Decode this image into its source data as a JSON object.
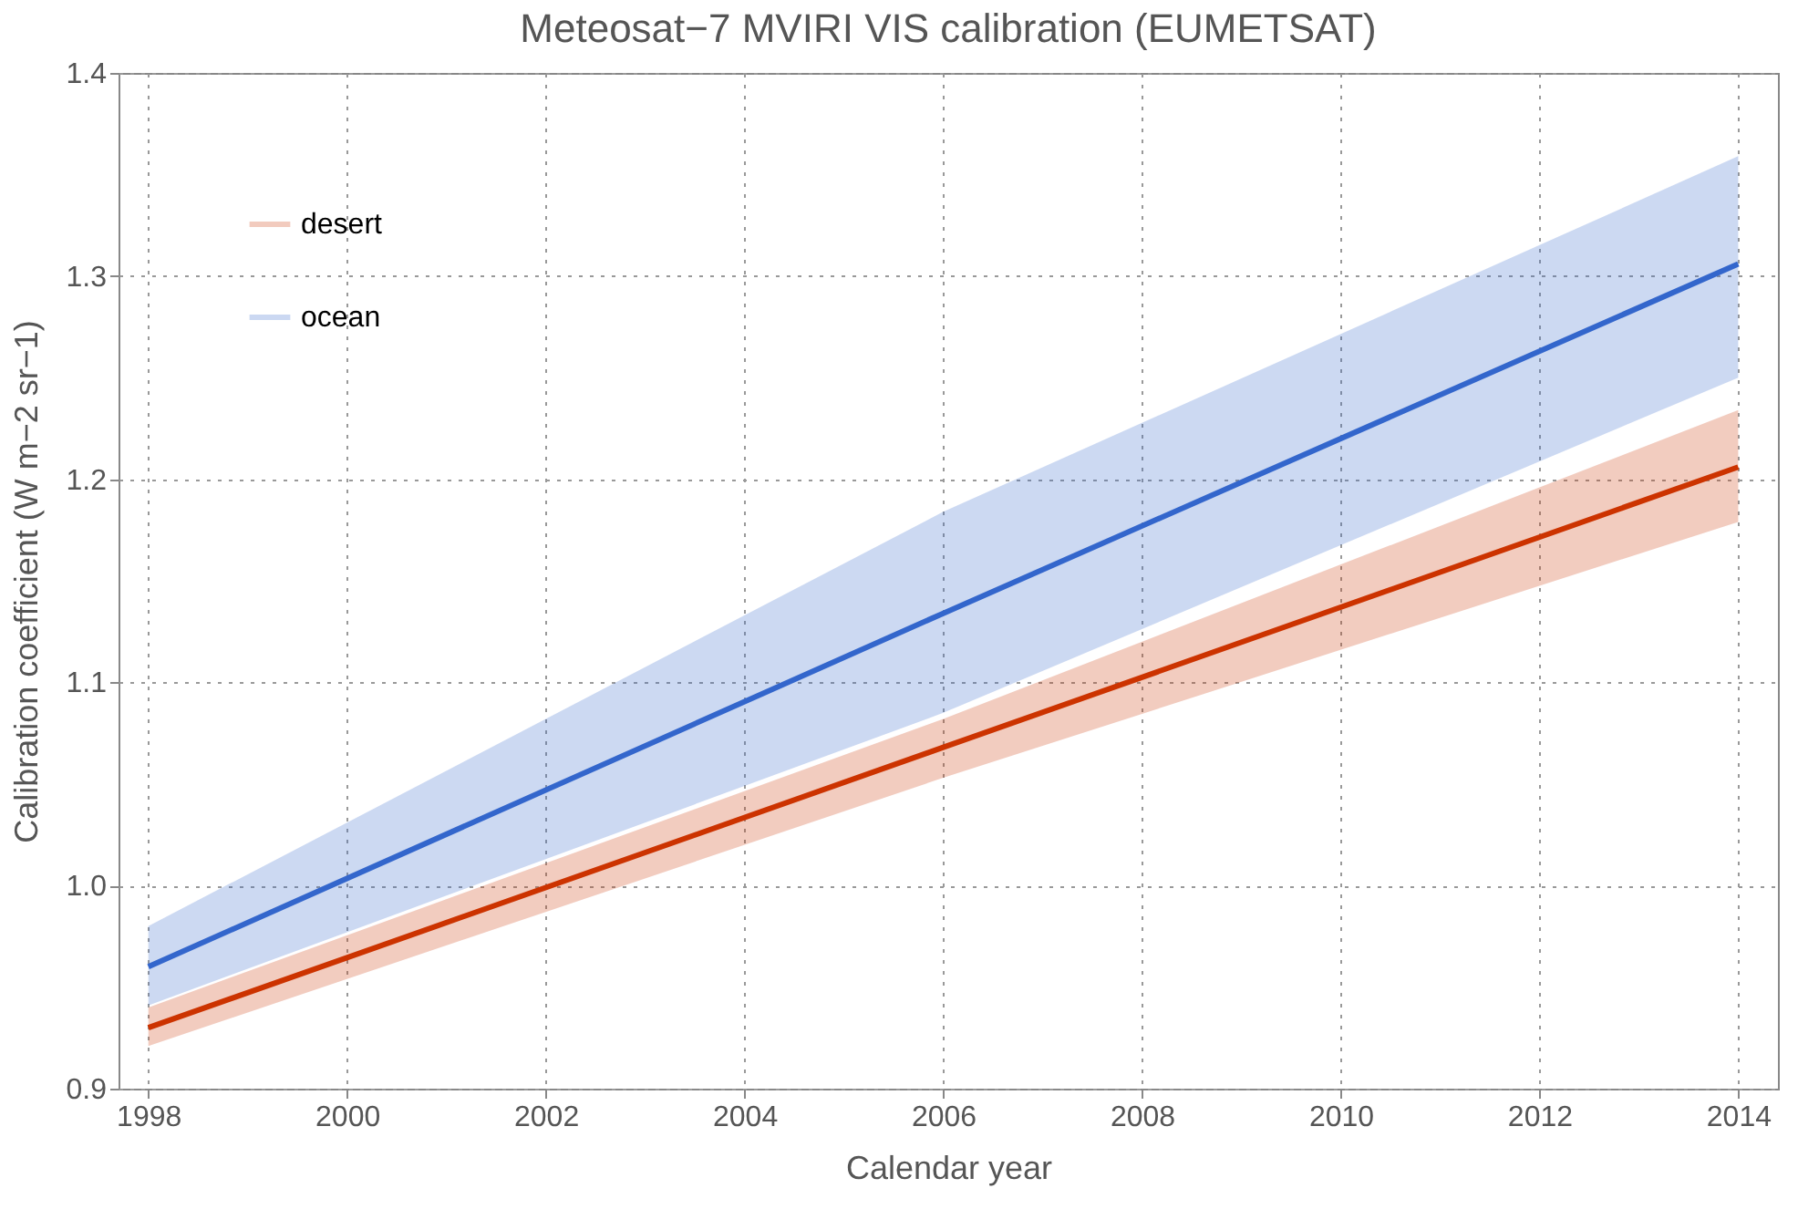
{
  "chart_data": {
    "type": "line",
    "title": "Meteosat−7 MVIRI VIS calibration (EUMETSAT)",
    "xlabel": "Calendar year",
    "ylabel": "Calibration coefficient (W m−2 sr−1)",
    "x": [
      1998,
      2006,
      2014
    ],
    "series": [
      {
        "name": "desert",
        "color": "#cc3300",
        "values": [
          0.93,
          1.068,
          1.206
        ],
        "lower": [
          0.921,
          1.053,
          1.179
        ],
        "upper": [
          0.94,
          1.082,
          1.234
        ]
      },
      {
        "name": "ocean",
        "color": "#3366cc",
        "values": [
          0.96,
          1.134,
          1.306
        ],
        "lower": [
          0.941,
          1.085,
          1.25
        ],
        "upper": [
          0.98,
          1.184,
          1.359
        ]
      }
    ],
    "xlim": [
      1997.7,
      2014.4
    ],
    "xticks": [
      1998,
      2000,
      2002,
      2004,
      2006,
      2008,
      2010,
      2012,
      2014
    ],
    "ylim": [
      0.9,
      1.4
    ],
    "yticks": [
      {
        "value": 0.9,
        "label": "0.9"
      },
      {
        "value": 1.0,
        "label": "1.0"
      },
      {
        "value": 1.1,
        "label": "1.1"
      },
      {
        "value": 1.2,
        "label": "1.2"
      },
      {
        "value": 1.3,
        "label": "1.3"
      },
      {
        "value": 1.4,
        "label": "1.4"
      }
    ],
    "grid": true,
    "legend": "top left",
    "line_style": "solid",
    "marker": "none"
  }
}
